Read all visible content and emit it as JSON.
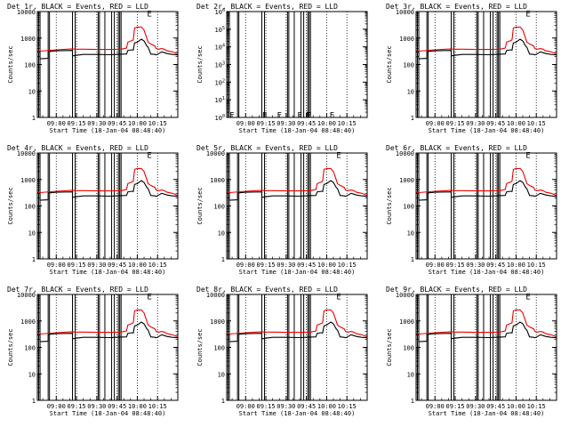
{
  "colors": {
    "events": "#000000",
    "lld": "#ee0000",
    "background": "#ffffff"
  },
  "shared": {
    "xlabel": "Start Time (18-Jan-04 08:48:40)",
    "ylabel": "Counts/sec",
    "xticks": [
      "09:00",
      "09:15",
      "09:30",
      "09:45",
      "10:00",
      "10:15"
    ],
    "xtick_minutes": [
      0,
      15,
      30,
      45,
      60,
      75
    ],
    "x_range_minutes": [
      -14,
      90
    ],
    "ylim": [
      1,
      10000
    ],
    "yscale": "log",
    "yticks": [
      "1",
      "10",
      "100",
      "1000",
      "10000"
    ]
  },
  "chart_data": [
    {
      "type": "line",
      "title": "Det 1r, BLACK = Events, RED = LLD",
      "ylim": [
        1,
        10000
      ],
      "yticks": [
        "1",
        "10",
        "100",
        "1000",
        "10000"
      ],
      "annot": [
        {
          "t": "E",
          "x": 69,
          "y": 9000
        }
      ],
      "has_data": true
    },
    {
      "type": "line",
      "title": "Det 2r, BLACK = Events, RED = LLD",
      "ylim": [
        1,
        1000000
      ],
      "yticks": [
        "10^0",
        "10^1",
        "10^2",
        "10^3",
        "10^4",
        "10^5",
        "10^6"
      ],
      "annot": [
        {
          "t": "E",
          "x": -10,
          "y": 1.5
        },
        {
          "t": "F",
          "x": 14,
          "y": 1.5
        },
        {
          "t": "F",
          "x": 25,
          "y": 1.5
        },
        {
          "t": "F",
          "x": 40,
          "y": 1.5
        },
        {
          "t": "F",
          "x": 46,
          "y": 1.5
        },
        {
          "t": "F",
          "x": 47,
          "y": 1.5
        },
        {
          "t": "E",
          "x": 64,
          "y": 1.5
        }
      ],
      "has_data": false
    },
    {
      "type": "line",
      "title": "Det 3r, BLACK = Events, RED = LLD",
      "ylim": [
        1,
        10000
      ],
      "yticks": [
        "1",
        "10",
        "100",
        "1000",
        "10000"
      ],
      "annot": [
        {
          "t": "E",
          "x": 69,
          "y": 9000
        }
      ],
      "has_data": true
    },
    {
      "type": "line",
      "title": "Det 4r, BLACK = Events, RED = LLD",
      "ylim": [
        1,
        10000
      ],
      "yticks": [
        "1",
        "10",
        "100",
        "1000",
        "10000"
      ],
      "annot": [
        {
          "t": "E",
          "x": 69,
          "y": 9000
        }
      ],
      "has_data": true
    },
    {
      "type": "line",
      "title": "Det 5r, BLACK = Events, RED = LLD",
      "ylim": [
        1,
        10000
      ],
      "yticks": [
        "1",
        "10",
        "100",
        "1000",
        "10000"
      ],
      "annot": [
        {
          "t": "E",
          "x": 69,
          "y": 9000
        }
      ],
      "has_data": true
    },
    {
      "type": "line",
      "title": "Det 6r, BLACK = Events, RED = LLD",
      "ylim": [
        1,
        10000
      ],
      "yticks": [
        "1",
        "10",
        "100",
        "1000",
        "10000"
      ],
      "annot": [
        {
          "t": "E",
          "x": 69,
          "y": 9000
        }
      ],
      "has_data": true
    },
    {
      "type": "line",
      "title": "Det 7r, BLACK = Events, RED = LLD",
      "ylim": [
        1,
        10000
      ],
      "yticks": [
        "1",
        "10",
        "100",
        "1000",
        "10000"
      ],
      "annot": [
        {
          "t": "E",
          "x": 69,
          "y": 9000
        }
      ],
      "has_data": true
    },
    {
      "type": "line",
      "title": "Det 8r, BLACK = Events, RED = LLD",
      "ylim": [
        1,
        10000
      ],
      "yticks": [
        "1",
        "10",
        "100",
        "1000",
        "10000"
      ],
      "annot": [
        {
          "t": "E",
          "x": 69,
          "y": 9000
        }
      ],
      "has_data": true
    },
    {
      "type": "line",
      "title": "Det 9r, BLACK = Events, RED = LLD",
      "ylim": [
        1,
        10000
      ],
      "yticks": [
        "1",
        "10",
        "100",
        "1000",
        "10000"
      ],
      "annot": [
        {
          "t": "E",
          "x": 69,
          "y": 9000
        }
      ],
      "has_data": true
    }
  ],
  "common_series": {
    "vertical_markers_minutes": [
      -13,
      -12,
      -6,
      -5,
      12,
      14,
      31,
      32,
      36,
      41,
      43,
      46,
      47,
      48
    ],
    "events": {
      "name": "Events",
      "x": [
        -14,
        -12,
        -12,
        -6,
        -6,
        0,
        12,
        12,
        14,
        20,
        30,
        40,
        48,
        52,
        53,
        56,
        57,
        58,
        60,
        63,
        65,
        67,
        68,
        70,
        73,
        74,
        76,
        78,
        80,
        82,
        86,
        90
      ],
      "y": [
        300,
        295,
        165,
        170,
        310,
        330,
        340,
        210,
        220,
        240,
        240,
        235,
        245,
        250,
        340,
        360,
        350,
        650,
        700,
        900,
        780,
        500,
        450,
        250,
        240,
        230,
        260,
        300,
        280,
        260,
        240,
        230
      ]
    },
    "lld": {
      "name": "LLD",
      "x": [
        -14,
        -12,
        0,
        12,
        14,
        20,
        30,
        40,
        48,
        52,
        53,
        56,
        57,
        58,
        60,
        63,
        65,
        67,
        68,
        70,
        73,
        74,
        76,
        78,
        80,
        82,
        86,
        90
      ],
      "y": [
        330,
        320,
        360,
        390,
        380,
        380,
        370,
        370,
        380,
        420,
        700,
        800,
        850,
        2400,
        2600,
        2600,
        2000,
        1000,
        700,
        600,
        500,
        400,
        380,
        400,
        380,
        330,
        300,
        250
      ]
    }
  }
}
